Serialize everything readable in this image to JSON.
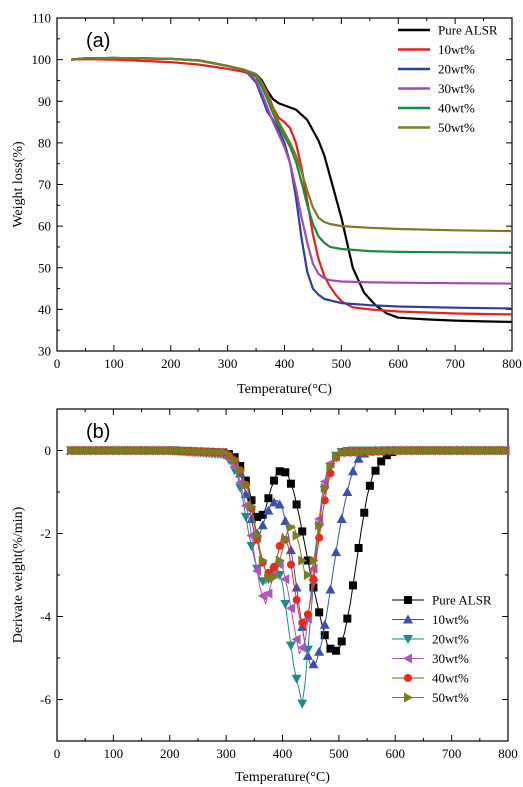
{
  "chart_data": [
    {
      "type": "line",
      "panel": "(a)",
      "xlabel": "Temperature(°C)",
      "ylabel": "Weight loss(%)",
      "xlim": [
        0,
        800
      ],
      "ylim": [
        30,
        110
      ],
      "xticks": [
        0,
        100,
        200,
        300,
        400,
        500,
        600,
        700,
        800
      ],
      "yticks": [
        30,
        40,
        50,
        60,
        70,
        80,
        90,
        100,
        110
      ],
      "legend_position": "top-right",
      "series": [
        {
          "name": "Pure ALSR",
          "color": "#000000",
          "x": [
            25,
            50,
            100,
            150,
            200,
            250,
            300,
            330,
            350,
            360,
            370,
            380,
            390,
            400,
            420,
            440,
            450,
            460,
            470,
            480,
            490,
            500,
            510,
            520,
            540,
            560,
            580,
            600,
            650,
            700,
            750,
            800
          ],
          "y": [
            100,
            100.3,
            100.4,
            100.3,
            100.2,
            99.8,
            98.5,
            97.5,
            96.5,
            95,
            92.5,
            90.5,
            89.5,
            89,
            88,
            85.5,
            83,
            80.5,
            77,
            72,
            67,
            62,
            56,
            50,
            44,
            41,
            39,
            38,
            37.6,
            37.3,
            37.1,
            37
          ]
        },
        {
          "name": "10wt%",
          "color": "#e8211b",
          "x": [
            25,
            50,
            100,
            150,
            200,
            250,
            300,
            330,
            350,
            360,
            370,
            380,
            390,
            400,
            410,
            420,
            430,
            440,
            450,
            460,
            470,
            480,
            490,
            500,
            510,
            520,
            550,
            600,
            700,
            800
          ],
          "y": [
            100,
            100.1,
            100,
            99.7,
            99.4,
            98.8,
            97.8,
            97,
            96,
            94.5,
            92,
            88.5,
            86,
            85,
            83.5,
            80,
            74,
            66,
            58,
            52,
            48,
            45.5,
            43.5,
            42,
            41.2,
            40.5,
            40,
            39.5,
            39,
            38.8
          ]
        },
        {
          "name": "20wt%",
          "color": "#2e3ea0",
          "x": [
            25,
            50,
            100,
            150,
            200,
            250,
            300,
            330,
            350,
            360,
            370,
            380,
            390,
            400,
            410,
            420,
            430,
            440,
            450,
            460,
            470,
            500,
            550,
            600,
            700,
            800
          ],
          "y": [
            100,
            100.3,
            100.4,
            100.3,
            100.2,
            99.8,
            98.5,
            97.5,
            94.5,
            91,
            87.5,
            85.5,
            83,
            80,
            75,
            67,
            57,
            49,
            45,
            43.5,
            42.5,
            41.5,
            41,
            40.7,
            40.4,
            40.2
          ]
        },
        {
          "name": "30wt%",
          "color": "#a04bb0",
          "x": [
            25,
            50,
            100,
            150,
            200,
            250,
            300,
            330,
            350,
            360,
            370,
            380,
            390,
            400,
            410,
            420,
            430,
            440,
            450,
            460,
            470,
            480,
            500,
            550,
            600,
            700,
            800
          ],
          "y": [
            100,
            100.3,
            100.4,
            100.3,
            100.2,
            99.8,
            98.5,
            97.5,
            95,
            92,
            88.5,
            85,
            82,
            79,
            75,
            69,
            62,
            56,
            51,
            48.5,
            47.5,
            47,
            46.7,
            46.5,
            46.4,
            46.3,
            46.2
          ]
        },
        {
          "name": "40wt%",
          "color": "#1b8a3a",
          "x": [
            25,
            50,
            100,
            150,
            200,
            250,
            300,
            330,
            350,
            360,
            370,
            380,
            390,
            400,
            410,
            420,
            430,
            440,
            450,
            460,
            470,
            480,
            500,
            550,
            600,
            700,
            800
          ],
          "y": [
            100,
            100.3,
            100.4,
            100.3,
            100.2,
            99.8,
            98.5,
            97.5,
            96,
            93.5,
            90.5,
            87,
            84,
            81.5,
            79,
            75.5,
            70.5,
            65,
            60.5,
            57.5,
            56,
            55,
            54.5,
            54,
            53.8,
            53.7,
            53.6
          ]
        },
        {
          "name": "50wt%",
          "color": "#7d7a22",
          "x": [
            25,
            50,
            100,
            150,
            200,
            250,
            300,
            330,
            350,
            360,
            370,
            380,
            390,
            400,
            410,
            420,
            430,
            440,
            450,
            460,
            470,
            480,
            500,
            550,
            600,
            700,
            800
          ],
          "y": [
            100,
            100.3,
            100.4,
            100.3,
            100.2,
            99.8,
            98.5,
            97.5,
            96.5,
            94.5,
            91.5,
            88,
            85,
            82.5,
            80,
            77,
            73,
            68.5,
            64.5,
            62,
            61,
            60.5,
            60,
            59.6,
            59.3,
            59,
            58.8
          ]
        }
      ]
    },
    {
      "type": "line",
      "panel": "(b)",
      "xlabel": "Temperature(°C)",
      "ylabel": "Derivate weight(%/min)",
      "xlim": [
        0,
        800
      ],
      "ylim": [
        -7,
        1
      ],
      "xticks": [
        0,
        100,
        200,
        300,
        400,
        500,
        600,
        700,
        800
      ],
      "yticks": [
        -6,
        -4,
        -2,
        0
      ],
      "legend_position": "bottom-right",
      "series": [
        {
          "name": "Pure ALSR",
          "color": "#000000",
          "marker": "square",
          "x": [
            25,
            100,
            200,
            300,
            320,
            340,
            350,
            360,
            370,
            380,
            390,
            400,
            410,
            420,
            430,
            440,
            450,
            460,
            470,
            480,
            490,
            500,
            510,
            520,
            530,
            540,
            550,
            560,
            580,
            600,
            650,
            700,
            800
          ],
          "y": [
            0,
            0,
            0,
            -0.05,
            -0.2,
            -0.9,
            -1.5,
            -1.7,
            -1.4,
            -0.9,
            -0.55,
            -0.45,
            -0.6,
            -1.0,
            -1.6,
            -2.3,
            -3.0,
            -3.6,
            -4.2,
            -4.7,
            -4.85,
            -4.8,
            -4.4,
            -3.7,
            -2.8,
            -1.9,
            -1.1,
            -0.6,
            -0.15,
            0,
            0,
            0,
            0
          ]
        },
        {
          "name": "10wt%",
          "color": "#3a4fae",
          "marker": "triangle-up",
          "x": [
            25,
            100,
            200,
            300,
            320,
            340,
            350,
            360,
            370,
            380,
            390,
            400,
            410,
            420,
            430,
            440,
            450,
            460,
            470,
            480,
            490,
            500,
            510,
            520,
            530,
            540,
            560,
            600,
            700,
            800
          ],
          "y": [
            0,
            0,
            0,
            -0.05,
            -0.3,
            -1.3,
            -2.0,
            -2.0,
            -1.6,
            -1.3,
            -1.2,
            -1.4,
            -2.0,
            -2.8,
            -3.8,
            -4.7,
            -5.2,
            -5.1,
            -4.6,
            -3.8,
            -2.9,
            -2.0,
            -1.3,
            -0.7,
            -0.3,
            -0.1,
            0,
            0,
            0,
            0
          ]
        },
        {
          "name": "20wt%",
          "color": "#1f8a8a",
          "marker": "triangle-down",
          "x": [
            25,
            100,
            200,
            300,
            320,
            330,
            340,
            350,
            360,
            370,
            380,
            390,
            400,
            410,
            420,
            430,
            435,
            440,
            450,
            460,
            470,
            480,
            490,
            500,
            520,
            600,
            700,
            800
          ],
          "y": [
            0,
            0,
            0,
            -0.1,
            -0.6,
            -1.2,
            -2.0,
            -2.6,
            -3.1,
            -3.2,
            -3.0,
            -2.8,
            -3.2,
            -4.2,
            -5.2,
            -5.8,
            -6.1,
            -5.6,
            -4.0,
            -2.4,
            -1.3,
            -0.6,
            -0.2,
            -0.05,
            0,
            0,
            0,
            0
          ]
        },
        {
          "name": "30wt%",
          "color": "#b055c0",
          "marker": "triangle-left",
          "x": [
            25,
            100,
            200,
            300,
            320,
            340,
            350,
            360,
            370,
            380,
            390,
            400,
            410,
            420,
            430,
            440,
            450,
            460,
            470,
            480,
            500,
            600,
            700,
            800
          ],
          "y": [
            0,
            0,
            0,
            -0.1,
            -0.5,
            -1.6,
            -2.5,
            -3.3,
            -3.7,
            -3.2,
            -2.7,
            -2.8,
            -3.4,
            -4.2,
            -4.9,
            -4.6,
            -3.5,
            -2.2,
            -1.1,
            -0.4,
            -0.05,
            0,
            0,
            0
          ]
        },
        {
          "name": "40wt%",
          "color": "#e8281e",
          "marker": "circle",
          "x": [
            25,
            100,
            200,
            300,
            320,
            340,
            350,
            360,
            370,
            380,
            390,
            400,
            410,
            420,
            430,
            440,
            450,
            460,
            470,
            480,
            490,
            500,
            600,
            700,
            800
          ],
          "y": [
            0,
            0,
            0,
            -0.05,
            -0.3,
            -1.0,
            -1.8,
            -2.5,
            -2.9,
            -3.0,
            -2.6,
            -2.0,
            -2.3,
            -3.2,
            -4.0,
            -4.3,
            -3.6,
            -2.6,
            -1.6,
            -0.8,
            -0.3,
            -0.05,
            0,
            0,
            0
          ]
        },
        {
          "name": "50wt%",
          "color": "#7e7a20",
          "marker": "triangle-right",
          "x": [
            25,
            100,
            200,
            300,
            320,
            340,
            350,
            360,
            370,
            380,
            390,
            400,
            410,
            420,
            430,
            440,
            450,
            460,
            470,
            480,
            500,
            600,
            700,
            800
          ],
          "y": [
            0,
            0,
            0,
            -0.05,
            -0.3,
            -1.0,
            -1.7,
            -2.4,
            -2.9,
            -3.2,
            -2.9,
            -2.4,
            -1.9,
            -1.8,
            -2.3,
            -3.0,
            -3.0,
            -2.3,
            -1.3,
            -0.5,
            -0.05,
            0,
            0,
            0
          ]
        }
      ]
    }
  ]
}
